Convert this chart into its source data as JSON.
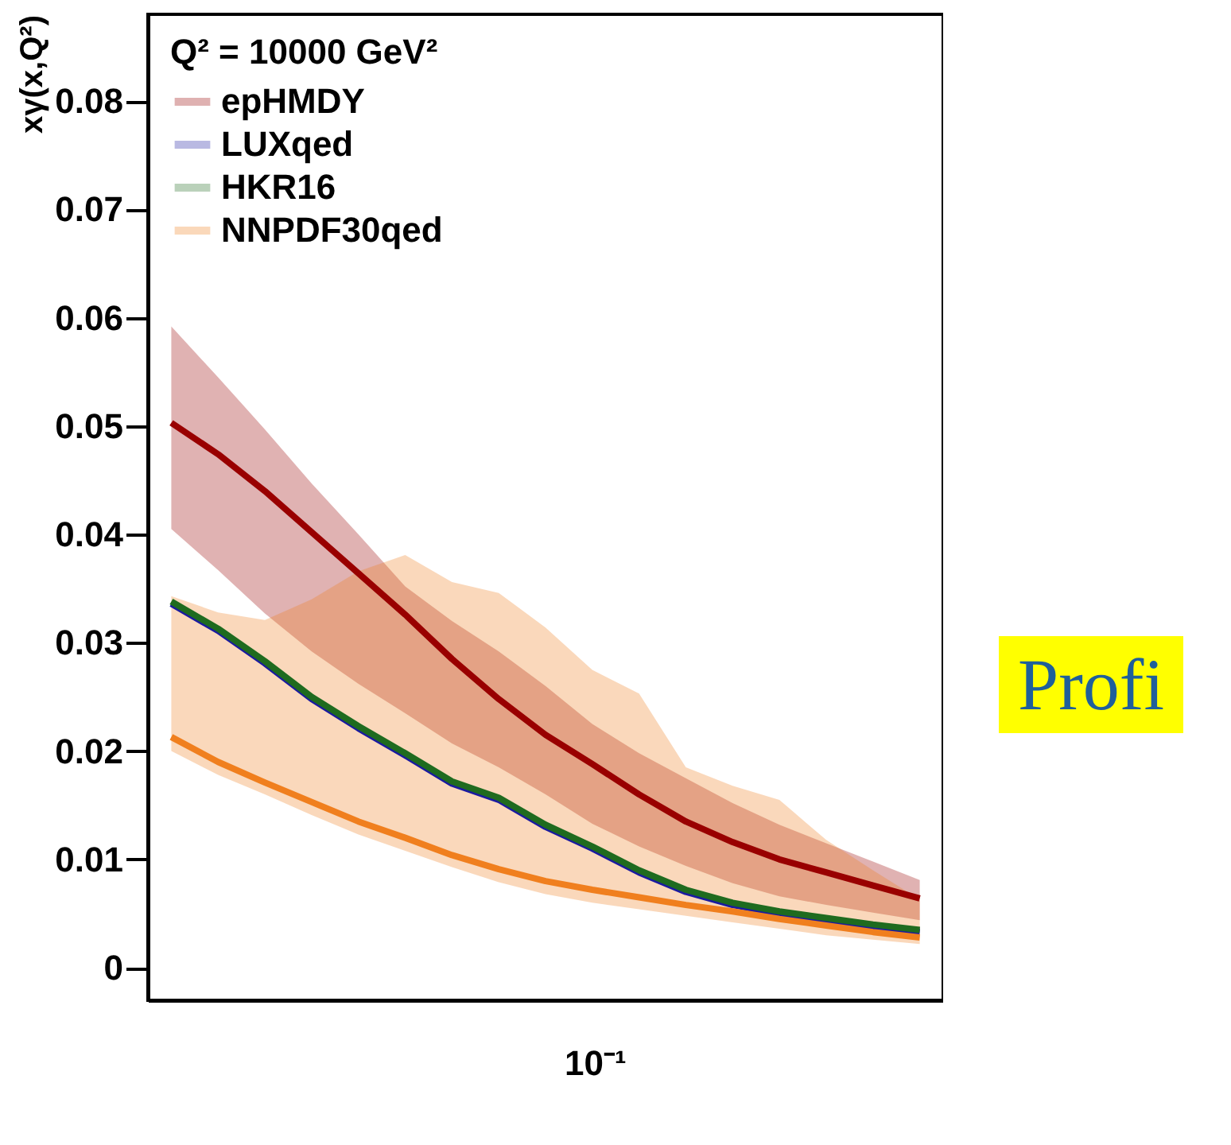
{
  "chart_data": {
    "type": "line",
    "ylabel": "xγ(x,Q²)",
    "legend_title": "Q² = 10000 GeV²",
    "legend": "top left",
    "categories": [
      null,
      null,
      null,
      null,
      null,
      null,
      null,
      null,
      null,
      null,
      null,
      null,
      null,
      null,
      null,
      null,
      null
    ],
    "ylim": [
      -0.003,
      0.088
    ],
    "yticks": [
      0,
      0.01,
      0.02,
      0.03,
      0.04,
      0.05,
      0.06,
      0.07,
      0.08
    ],
    "annotations": [
      "10⁻¹",
      "Profi"
    ],
    "series": [
      {
        "name": "epHMDY",
        "color": "#990000",
        "values": [
          0.0503,
          0.0474,
          0.044,
          0.0402,
          0.0364,
          0.0326,
          0.0285,
          0.0248,
          0.0215,
          0.0188,
          0.016,
          0.0135,
          0.0116,
          0.01,
          0.0088,
          0.0076,
          0.0064
        ],
        "lower": [
          0.0405,
          0.0367,
          0.0327,
          0.0292,
          0.0262,
          0.0235,
          0.0207,
          0.0185,
          0.016,
          0.0133,
          0.0112,
          0.0094,
          0.0078,
          0.0066,
          0.0058,
          0.0051,
          0.0044
        ],
        "upper": [
          0.0592,
          0.0545,
          0.0497,
          0.0447,
          0.04,
          0.0352,
          0.032,
          0.0292,
          0.026,
          0.0225,
          0.0198,
          0.0175,
          0.0152,
          0.0132,
          0.0115,
          0.0098,
          0.0081
        ]
      },
      {
        "name": "LUXqed",
        "color": "#1a1aa0",
        "values": [
          0.0336,
          0.0311,
          0.0281,
          0.0248,
          0.0221,
          0.0196,
          0.017,
          0.0155,
          0.013,
          0.011,
          0.0088,
          0.007,
          0.0058,
          0.005,
          0.0044,
          0.0038,
          0.0033
        ]
      },
      {
        "name": "HKR16",
        "color": "#1f6b1f",
        "values": [
          0.0338,
          0.0313,
          0.0283,
          0.025,
          0.0223,
          0.0198,
          0.0172,
          0.0157,
          0.0132,
          0.0112,
          0.009,
          0.0072,
          0.006,
          0.0052,
          0.0046,
          0.004,
          0.0035
        ]
      },
      {
        "name": "NNPDF30qed",
        "color": "#f07f1e",
        "values": [
          0.0213,
          0.019,
          0.0171,
          0.0153,
          0.0135,
          0.012,
          0.0104,
          0.0091,
          0.008,
          0.0072,
          0.0065,
          0.0058,
          0.0052,
          0.0045,
          0.0039,
          0.0033,
          0.0028
        ],
        "lower": [
          0.02,
          0.0178,
          0.016,
          0.0141,
          0.0123,
          0.0108,
          0.0093,
          0.0079,
          0.0068,
          0.006,
          0.0054,
          0.0048,
          0.0042,
          0.0036,
          0.003,
          0.0026,
          0.0022
        ],
        "upper": [
          0.0343,
          0.0328,
          0.0321,
          0.034,
          0.0366,
          0.0381,
          0.0356,
          0.0346,
          0.0314,
          0.0275,
          0.0253,
          0.0185,
          0.0168,
          0.0155,
          0.0118,
          0.009,
          0.0063
        ]
      }
    ]
  }
}
